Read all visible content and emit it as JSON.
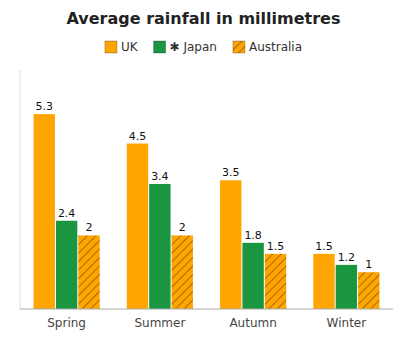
{
  "chart_data": {
    "type": "bar",
    "title": "Average rainfall in millimetres",
    "categories": [
      "Spring",
      "Summer",
      "Autumn",
      "Winter"
    ],
    "series": [
      {
        "name": "UK",
        "color": "#FFA500",
        "values": [
          5.3,
          4.5,
          3.5,
          1.5
        ]
      },
      {
        "name": "✱ Japan",
        "color": "#1A9640",
        "values": [
          2.4,
          3.4,
          1.8,
          1.2
        ]
      },
      {
        "name": "Australia",
        "color": "#FFA500",
        "values": [
          2.0,
          2.0,
          1.5,
          1.0
        ]
      }
    ],
    "ylim": [
      0,
      6.5
    ],
    "grid": false,
    "legend": "top",
    "data_labels": true,
    "tick_labels": "x"
  }
}
